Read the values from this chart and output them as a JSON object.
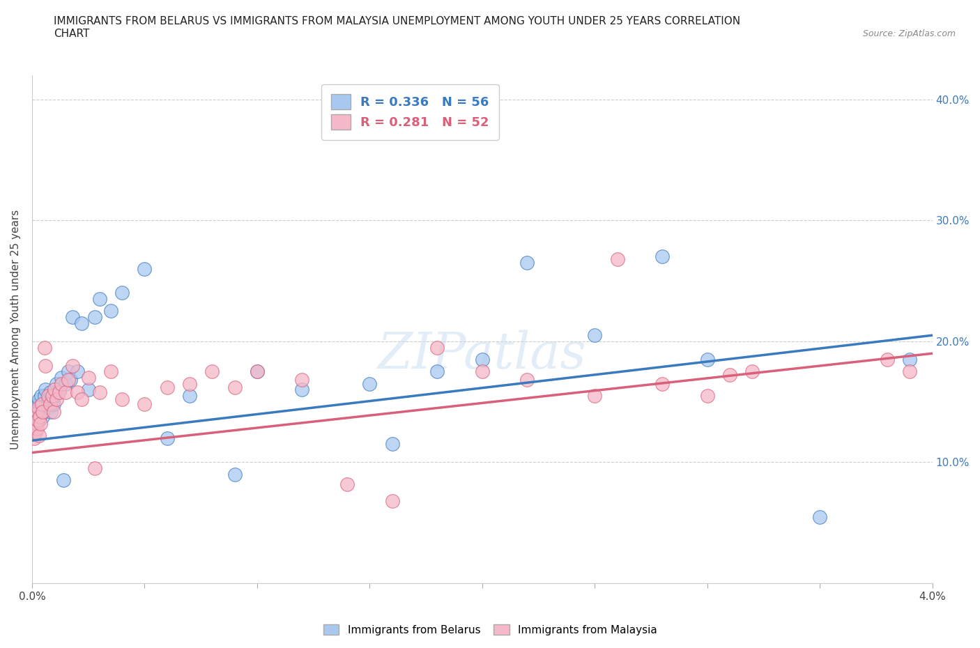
{
  "title": "IMMIGRANTS FROM BELARUS VS IMMIGRANTS FROM MALAYSIA UNEMPLOYMENT AMONG YOUTH UNDER 25 YEARS CORRELATION\nCHART",
  "source_text": "Source: ZipAtlas.com",
  "ylabel": "Unemployment Among Youth under 25 years",
  "xlim": [
    0.0,
    0.04
  ],
  "ylim": [
    0.0,
    0.42
  ],
  "xticks": [
    0.0,
    0.005,
    0.01,
    0.015,
    0.02,
    0.025,
    0.03,
    0.035,
    0.04
  ],
  "xticklabels": [
    "0.0%",
    "",
    "",
    "",
    "",
    "",
    "",
    "",
    "4.0%"
  ],
  "yticks": [
    0.0,
    0.1,
    0.2,
    0.3,
    0.4
  ],
  "yticklabels": [
    "",
    "10.0%",
    "20.0%",
    "30.0%",
    "40.0%"
  ],
  "grid_color": "#cccccc",
  "background_color": "#ffffff",
  "belarus_color": "#a8c8f0",
  "malaysia_color": "#f4b8c8",
  "belarus_line_color": "#3a7abf",
  "malaysia_line_color": "#d9607a",
  "R_belarus": 0.336,
  "N_belarus": 56,
  "R_malaysia": 0.281,
  "N_malaysia": 52,
  "legend_label_belarus": "Immigrants from Belarus",
  "legend_label_malaysia": "Immigrants from Malaysia",
  "watermark": "ZIPatlas",
  "belarus_x": [
    0.00012,
    0.00015,
    0.00018,
    0.0002,
    0.00022,
    0.00025,
    0.00028,
    0.0003,
    0.00032,
    0.00035,
    0.00038,
    0.0004,
    0.00045,
    0.00048,
    0.0005,
    0.00055,
    0.0006,
    0.00065,
    0.0007,
    0.00075,
    0.0008,
    0.00085,
    0.0009,
    0.00095,
    0.001,
    0.0011,
    0.0012,
    0.0013,
    0.0014,
    0.0015,
    0.0016,
    0.0017,
    0.0018,
    0.002,
    0.0022,
    0.0025,
    0.0028,
    0.003,
    0.0035,
    0.004,
    0.005,
    0.006,
    0.007,
    0.009,
    0.01,
    0.012,
    0.015,
    0.016,
    0.018,
    0.02,
    0.022,
    0.025,
    0.028,
    0.03,
    0.035,
    0.039
  ],
  "belarus_y": [
    0.135,
    0.13,
    0.14,
    0.145,
    0.138,
    0.142,
    0.148,
    0.135,
    0.152,
    0.145,
    0.14,
    0.155,
    0.148,
    0.138,
    0.142,
    0.155,
    0.16,
    0.148,
    0.152,
    0.145,
    0.158,
    0.142,
    0.15,
    0.148,
    0.155,
    0.165,
    0.16,
    0.17,
    0.085,
    0.165,
    0.175,
    0.168,
    0.22,
    0.175,
    0.215,
    0.16,
    0.22,
    0.235,
    0.225,
    0.24,
    0.26,
    0.12,
    0.155,
    0.09,
    0.175,
    0.16,
    0.165,
    0.115,
    0.175,
    0.185,
    0.265,
    0.205,
    0.27,
    0.185,
    0.055,
    0.185
  ],
  "malaysia_x": [
    0.0001,
    0.00015,
    0.00018,
    0.0002,
    0.00023,
    0.00025,
    0.00028,
    0.0003,
    0.00033,
    0.00038,
    0.00042,
    0.00048,
    0.00055,
    0.0006,
    0.0007,
    0.0008,
    0.0009,
    0.00095,
    0.001,
    0.0011,
    0.0012,
    0.0013,
    0.0015,
    0.0016,
    0.0018,
    0.002,
    0.0022,
    0.0025,
    0.0028,
    0.003,
    0.0035,
    0.004,
    0.005,
    0.006,
    0.007,
    0.008,
    0.009,
    0.01,
    0.012,
    0.014,
    0.016,
    0.018,
    0.02,
    0.022,
    0.025,
    0.026,
    0.028,
    0.03,
    0.031,
    0.032,
    0.038,
    0.039
  ],
  "malaysia_y": [
    0.12,
    0.125,
    0.132,
    0.14,
    0.128,
    0.135,
    0.145,
    0.122,
    0.138,
    0.132,
    0.148,
    0.142,
    0.195,
    0.18,
    0.155,
    0.148,
    0.155,
    0.142,
    0.16,
    0.152,
    0.158,
    0.165,
    0.158,
    0.168,
    0.18,
    0.158,
    0.152,
    0.17,
    0.095,
    0.158,
    0.175,
    0.152,
    0.148,
    0.162,
    0.165,
    0.175,
    0.162,
    0.175,
    0.168,
    0.082,
    0.068,
    0.195,
    0.175,
    0.168,
    0.155,
    0.268,
    0.165,
    0.155,
    0.172,
    0.175,
    0.185,
    0.175
  ]
}
